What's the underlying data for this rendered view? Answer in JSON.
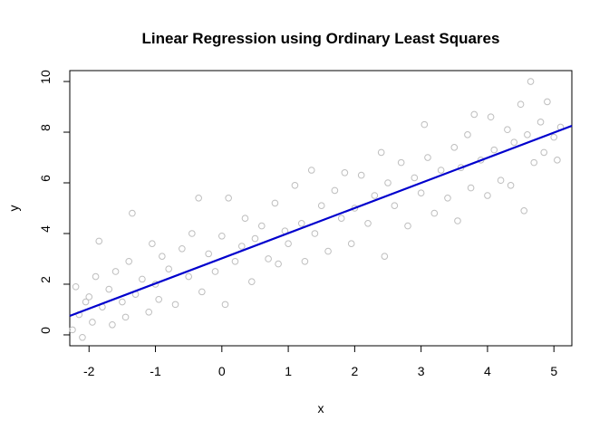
{
  "chart_data": {
    "type": "scatter",
    "title": "Linear Regression using Ordinary Least Squares",
    "xlabel": "x",
    "ylabel": "y",
    "xlim": [
      -2.29,
      5.27
    ],
    "ylim": [
      -0.43,
      10.43
    ],
    "xticks": [
      -2,
      -1,
      0,
      1,
      2,
      3,
      4,
      5
    ],
    "yticks": [
      0,
      2,
      4,
      6,
      8,
      10
    ],
    "point_color": "#bebebe",
    "x": [
      -2.25,
      -2.2,
      -2.15,
      -2.1,
      -2.05,
      -2.0,
      -1.95,
      -1.9,
      -1.85,
      -1.8,
      -1.7,
      -1.65,
      -1.6,
      -1.5,
      -1.45,
      -1.4,
      -1.35,
      -1.3,
      -1.2,
      -1.1,
      -1.05,
      -1.0,
      -0.95,
      -0.9,
      -0.8,
      -0.7,
      -0.6,
      -0.5,
      -0.45,
      -0.35,
      -0.3,
      -0.2,
      -0.1,
      0.0,
      0.05,
      0.1,
      0.2,
      0.3,
      0.35,
      0.45,
      0.5,
      0.6,
      0.7,
      0.8,
      0.85,
      0.95,
      1.0,
      1.1,
      1.2,
      1.25,
      1.35,
      1.4,
      1.5,
      1.6,
      1.7,
      1.8,
      1.85,
      1.95,
      2.0,
      2.1,
      2.2,
      2.3,
      2.4,
      2.45,
      2.5,
      2.6,
      2.7,
      2.8,
      2.9,
      3.0,
      3.05,
      3.1,
      3.2,
      3.3,
      3.4,
      3.5,
      3.55,
      3.6,
      3.7,
      3.75,
      3.8,
      3.9,
      4.0,
      4.05,
      4.1,
      4.2,
      4.3,
      4.35,
      4.4,
      4.5,
      4.55,
      4.6,
      4.65,
      4.7,
      4.8,
      4.85,
      4.9,
      5.0,
      5.05,
      5.1
    ],
    "values": [
      0.2,
      1.9,
      0.8,
      -0.1,
      1.3,
      1.5,
      0.5,
      2.3,
      3.7,
      1.1,
      1.8,
      0.4,
      2.5,
      1.3,
      0.7,
      2.9,
      4.8,
      1.6,
      2.2,
      0.9,
      3.6,
      2.0,
      1.4,
      3.1,
      2.6,
      1.2,
      3.4,
      2.3,
      4.0,
      5.4,
      1.7,
      3.2,
      2.5,
      3.9,
      1.2,
      5.4,
      2.9,
      3.5,
      4.6,
      2.1,
      3.8,
      4.3,
      3.0,
      5.2,
      2.8,
      4.1,
      3.6,
      5.9,
      4.4,
      2.9,
      6.5,
      4.0,
      5.1,
      3.3,
      5.7,
      4.6,
      6.4,
      3.6,
      5.0,
      6.3,
      4.4,
      5.5,
      7.2,
      3.1,
      6.0,
      5.1,
      6.8,
      4.3,
      6.2,
      5.6,
      8.3,
      7.0,
      4.8,
      6.5,
      5.4,
      7.4,
      4.5,
      6.6,
      7.9,
      5.8,
      8.7,
      6.9,
      5.5,
      8.6,
      7.3,
      6.1,
      8.1,
      5.9,
      7.6,
      9.1,
      4.9,
      7.9,
      10.0,
      6.8,
      8.4,
      7.2,
      9.2,
      7.8,
      6.9,
      8.2
    ],
    "fit": {
      "color": "#0000cd",
      "x": [
        -2.29,
        5.27
      ],
      "y": [
        0.75,
        8.25
      ]
    }
  }
}
